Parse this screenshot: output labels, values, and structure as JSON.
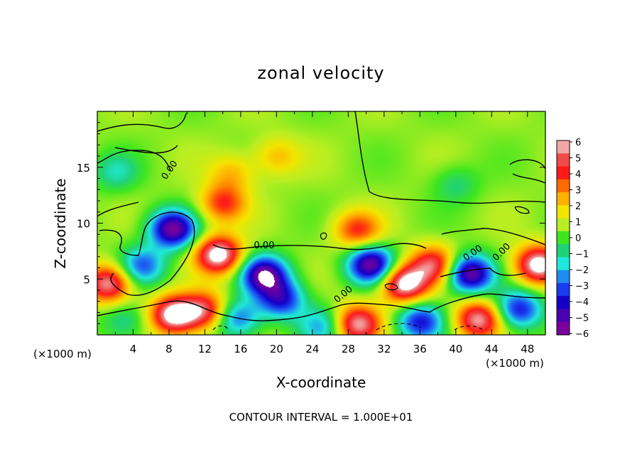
{
  "chart_data": {
    "type": "heatmap",
    "title": "zonal velocity",
    "xlabel": "X-coordinate",
    "ylabel": "Z-coordinate",
    "x_unit": "(×1000 m)",
    "footer": "CONTOUR INTERVAL = 1.000E+01",
    "xlim": [
      0,
      50
    ],
    "ylim": [
      0,
      20
    ],
    "x_ticks": [
      "4",
      "8",
      "12",
      "16",
      "20",
      "24",
      "28",
      "32",
      "36",
      "40",
      "44",
      "48"
    ],
    "x_tick_values": [
      4,
      8,
      12,
      16,
      20,
      24,
      28,
      32,
      36,
      40,
      44,
      48
    ],
    "y_ticks": [
      "5",
      "10",
      "15"
    ],
    "y_tick_values": [
      5,
      10,
      15
    ],
    "colorbar": {
      "labels": [
        "6",
        "5",
        "4",
        "3",
        "2",
        "1",
        "0",
        "−1",
        "−2",
        "−3",
        "−4",
        "−5",
        "−6"
      ],
      "range": [
        -6,
        6
      ],
      "colors": [
        "#f3a8a8",
        "#f04a4a",
        "#ff1a1a",
        "#ff6a00",
        "#ffb000",
        "#f2e600",
        "#b8ee22",
        "#3fe61e",
        "#1fd27a",
        "#20e8d8",
        "#1e8cf0",
        "#1a3cf0",
        "#1400c8",
        "#4a00b0",
        "#7a009a"
      ]
    },
    "contour_labels": [
      "0.00",
      "0.00",
      "0.00",
      "0.00",
      "0.00"
    ],
    "blobs": [
      {
        "x": 8.4,
        "z": 9.5,
        "v": -7
      },
      {
        "x": 5.0,
        "z": 6.2,
        "v": -4
      },
      {
        "x": 18.6,
        "z": 5.4,
        "v": -7
      },
      {
        "x": 20.5,
        "z": 3.2,
        "v": -5
      },
      {
        "x": 30.5,
        "z": 6.3,
        "v": -7
      },
      {
        "x": 41.5,
        "z": 5.5,
        "v": -7
      },
      {
        "x": 13.5,
        "z": 7.2,
        "v": 7
      },
      {
        "x": 34.2,
        "z": 4.6,
        "v": 7
      },
      {
        "x": 8.5,
        "z": 1.8,
        "v": 7
      },
      {
        "x": 1.2,
        "z": 4.6,
        "v": 6
      },
      {
        "x": 49.2,
        "z": 6.3,
        "v": 7
      },
      {
        "x": 14.0,
        "z": 11.8,
        "v": 4
      },
      {
        "x": 29.0,
        "z": 9.4,
        "v": 4
      },
      {
        "x": 15.0,
        "z": 14.5,
        "v": 2
      },
      {
        "x": 20.0,
        "z": 16.0,
        "v": 2
      },
      {
        "x": 37.5,
        "z": 6.3,
        "v": 5
      },
      {
        "x": 42.5,
        "z": 1.4,
        "v": 6
      },
      {
        "x": 29.0,
        "z": 1.0,
        "v": 6
      },
      {
        "x": 25.0,
        "z": 0.8,
        "v": -3
      },
      {
        "x": 36.0,
        "z": 1.2,
        "v": -5
      },
      {
        "x": 3.0,
        "z": 1.2,
        "v": -2
      },
      {
        "x": 47.0,
        "z": 2.3,
        "v": -5
      },
      {
        "x": 15.5,
        "z": 1.5,
        "v": -4
      },
      {
        "x": 12.0,
        "z": 2.2,
        "v": 5
      },
      {
        "x": 2.0,
        "z": 14.6,
        "v": -2
      },
      {
        "x": 40.0,
        "z": 13.5,
        "v": -1.5
      }
    ]
  }
}
